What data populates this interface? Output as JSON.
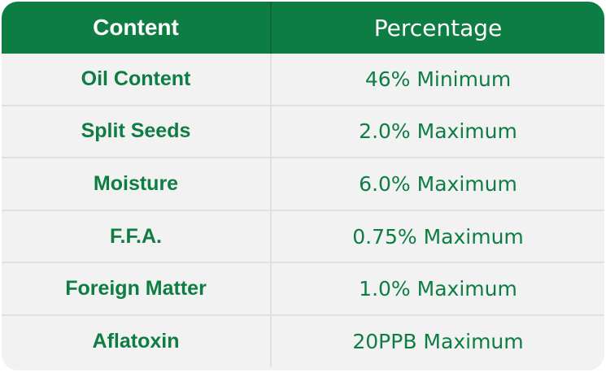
{
  "table": {
    "headers": [
      "Content",
      "Percentage"
    ],
    "rows": [
      {
        "content": "Oil Content",
        "percentage": "46% Minimum"
      },
      {
        "content": "Split Seeds",
        "percentage": "2.0% Maximum"
      },
      {
        "content": "Moisture",
        "percentage": "6.0% Maximum"
      },
      {
        "content": "F.F.A.",
        "percentage": "0.75% Maximum"
      },
      {
        "content": "Foreign Matter",
        "percentage": "1.0% Maximum"
      },
      {
        "content": "Aflatoxin",
        "percentage": "20PPB Maximum"
      }
    ]
  },
  "colors": {
    "header_background": "#0e7d43",
    "header_text": "#ffffff",
    "body_background": "#f2f2f2",
    "body_text": "#0e7d43"
  }
}
